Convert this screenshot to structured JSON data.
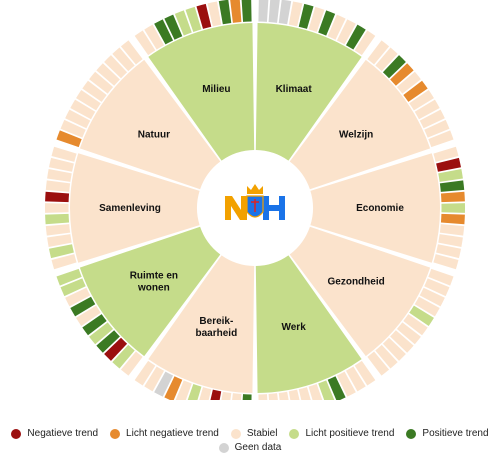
{
  "colors": {
    "negatief": "#9b0f0f",
    "licht_negatief": "#e68a2e",
    "stabiel": "#fbe3cc",
    "licht_positief": "#c5dc8a",
    "positief": "#3b7a23",
    "geen_data": "#d3d3d3",
    "segment_fill_stabiel": "#fbe3cc",
    "segment_fill_positief": "#c5dc8a",
    "ring_empty": "#fdf1e6",
    "divider": "#ffffff"
  },
  "logo": {
    "text": "NH",
    "icon": "crown-shield-logo"
  },
  "segments": [
    {
      "name": "Klimaat",
      "fill": "positief",
      "trends": [
        "geen_data",
        "geen_data",
        "geen_data",
        "stabiel",
        "positief",
        "stabiel",
        "positief",
        "stabiel",
        "stabiel",
        "positief",
        "stabiel"
      ]
    },
    {
      "name": "Welzijn",
      "fill": "stabiel",
      "trends": [
        "stabiel",
        "stabiel",
        "positief",
        "licht_negatief",
        "stabiel",
        "licht_negatief",
        "stabiel",
        "stabiel",
        "stabiel",
        "stabiel",
        "stabiel"
      ]
    },
    {
      "name": "Economie",
      "fill": "stabiel",
      "trends": [
        "stabiel",
        "negatief",
        "licht_positief",
        "positief",
        "licht_negatief",
        "licht_positief",
        "licht_negatief",
        "stabiel",
        "stabiel",
        "stabiel",
        "stabiel"
      ]
    },
    {
      "name": "Gezondheid",
      "fill": "stabiel",
      "trends": [
        "stabiel",
        "stabiel",
        "stabiel",
        "stabiel",
        "licht_positief",
        "stabiel",
        "stabiel",
        "stabiel",
        "stabiel",
        "stabiel",
        "stabiel"
      ]
    },
    {
      "name": "Werk",
      "fill": "positief",
      "trends": [
        "stabiel",
        "stabiel",
        "stabiel",
        "positief",
        "licht_positief",
        "stabiel",
        "stabiel",
        "stabiel",
        "stabiel",
        "stabiel",
        "stabiel"
      ]
    },
    {
      "name": "Bereik-\nbaarheid",
      "fill": "stabiel",
      "trends": [
        "positief",
        "stabiel",
        "stabiel",
        "negatief",
        "stabiel",
        "licht_positief",
        "stabiel",
        "licht_negatief",
        "geen_data",
        "stabiel",
        "stabiel"
      ]
    },
    {
      "name": "Ruimte en\nwonen",
      "fill": "positief",
      "trends": [
        "stabiel",
        "licht_positief",
        "negatief",
        "positief",
        "licht_positief",
        "positief",
        "stabiel",
        "positief",
        "stabiel",
        "licht_positief",
        "licht_positief"
      ]
    },
    {
      "name": "Samenleving",
      "fill": "stabiel",
      "trends": [
        "stabiel",
        "licht_positief",
        "stabiel",
        "stabiel",
        "licht_positief",
        "stabiel",
        "negatief",
        "stabiel",
        "stabiel",
        "stabiel",
        "stabiel"
      ]
    },
    {
      "name": "Natuur",
      "fill": "stabiel",
      "trends": [
        "licht_negatief",
        "stabiel",
        "stabiel",
        "stabiel",
        "stabiel",
        "stabiel",
        "stabiel",
        "stabiel",
        "stabiel",
        "stabiel",
        "stabiel"
      ]
    },
    {
      "name": "Milieu",
      "fill": "positief",
      "trends": [
        "stabiel",
        "stabiel",
        "positief",
        "positief",
        "licht_positief",
        "licht_positief",
        "negatief",
        "stabiel",
        "positief",
        "licht_negatief",
        "positief"
      ]
    }
  ],
  "legend": [
    {
      "key": "negatief",
      "label": "Negatieve trend"
    },
    {
      "key": "licht_negatief",
      "label": "Licht negatieve trend"
    },
    {
      "key": "stabiel",
      "label": "Stabiel"
    },
    {
      "key": "licht_positief",
      "label": "Licht positieve trend"
    },
    {
      "key": "positief",
      "label": "Positieve trend"
    },
    {
      "key": "geen_data",
      "label": "Geen data"
    }
  ]
}
